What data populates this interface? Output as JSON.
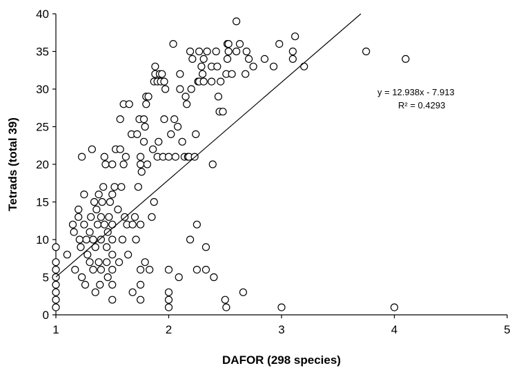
{
  "chart_data": {
    "type": "scatter",
    "title": "",
    "xlabel": "DAFOR (298 species)",
    "ylabel": "Tetrads (total 39)",
    "xlim": [
      1,
      5
    ],
    "ylim": [
      0,
      40
    ],
    "xticks": [
      "1",
      "2",
      "3",
      "4",
      "5"
    ],
    "yticks": [
      "0",
      "5",
      "10",
      "15",
      "20",
      "25",
      "30",
      "35",
      "40"
    ],
    "grid": false,
    "legend": "none",
    "colors": {
      "marker_stroke": "#000000",
      "marker_fill": "#ffffff",
      "trendline": "#000000"
    },
    "trendline": {
      "slope": 12.938,
      "intercept": -7.913
    },
    "annotations": {
      "equation": "y = 12.938x - 7.913",
      "r2": "R² = 0.4293"
    },
    "points": [
      [
        1.0,
        9
      ],
      [
        1.0,
        7
      ],
      [
        1.0,
        6
      ],
      [
        1.0,
        5
      ],
      [
        1.0,
        4
      ],
      [
        1.0,
        3
      ],
      [
        1.0,
        2
      ],
      [
        1.0,
        1
      ],
      [
        1.1,
        8
      ],
      [
        1.15,
        12
      ],
      [
        1.16,
        11
      ],
      [
        1.17,
        6
      ],
      [
        1.2,
        14
      ],
      [
        1.2,
        13
      ],
      [
        1.21,
        10
      ],
      [
        1.22,
        9
      ],
      [
        1.23,
        5
      ],
      [
        1.23,
        21
      ],
      [
        1.25,
        16
      ],
      [
        1.25,
        12
      ],
      [
        1.26,
        4
      ],
      [
        1.27,
        10
      ],
      [
        1.28,
        8
      ],
      [
        1.3,
        11
      ],
      [
        1.3,
        7
      ],
      [
        1.31,
        13
      ],
      [
        1.32,
        22
      ],
      [
        1.33,
        10
      ],
      [
        1.33,
        6
      ],
      [
        1.34,
        15
      ],
      [
        1.35,
        3
      ],
      [
        1.35,
        9
      ],
      [
        1.36,
        14
      ],
      [
        1.37,
        12
      ],
      [
        1.38,
        7
      ],
      [
        1.38,
        16
      ],
      [
        1.39,
        4
      ],
      [
        1.4,
        13
      ],
      [
        1.4,
        10
      ],
      [
        1.4,
        6
      ],
      [
        1.41,
        15
      ],
      [
        1.42,
        17
      ],
      [
        1.43,
        21
      ],
      [
        1.43,
        12
      ],
      [
        1.44,
        20
      ],
      [
        1.45,
        7
      ],
      [
        1.45,
        9
      ],
      [
        1.46,
        5
      ],
      [
        1.46,
        11
      ],
      [
        1.47,
        13
      ],
      [
        1.48,
        15
      ],
      [
        1.5,
        20
      ],
      [
        1.5,
        16
      ],
      [
        1.5,
        12
      ],
      [
        1.5,
        10
      ],
      [
        1.5,
        8
      ],
      [
        1.5,
        6
      ],
      [
        1.5,
        4
      ],
      [
        1.5,
        2
      ],
      [
        1.52,
        17
      ],
      [
        1.53,
        22
      ],
      [
        1.55,
        14
      ],
      [
        1.56,
        7
      ],
      [
        1.57,
        26
      ],
      [
        1.57,
        22
      ],
      [
        1.58,
        17
      ],
      [
        1.59,
        10
      ],
      [
        1.6,
        28
      ],
      [
        1.6,
        20
      ],
      [
        1.61,
        13
      ],
      [
        1.62,
        21
      ],
      [
        1.63,
        12
      ],
      [
        1.64,
        8
      ],
      [
        1.65,
        28
      ],
      [
        1.67,
        24
      ],
      [
        1.68,
        12
      ],
      [
        1.68,
        3
      ],
      [
        1.7,
        13
      ],
      [
        1.71,
        10
      ],
      [
        1.72,
        24
      ],
      [
        1.73,
        17
      ],
      [
        1.74,
        26
      ],
      [
        1.75,
        21
      ],
      [
        1.75,
        20
      ],
      [
        1.75,
        12
      ],
      [
        1.75,
        6
      ],
      [
        1.75,
        4
      ],
      [
        1.75,
        2
      ],
      [
        1.76,
        19
      ],
      [
        1.78,
        26
      ],
      [
        1.78,
        23
      ],
      [
        1.79,
        25
      ],
      [
        1.79,
        7
      ],
      [
        1.8,
        28
      ],
      [
        1.8,
        29
      ],
      [
        1.81,
        20
      ],
      [
        1.82,
        29
      ],
      [
        1.83,
        6
      ],
      [
        1.85,
        13
      ],
      [
        1.86,
        22
      ],
      [
        1.87,
        15
      ],
      [
        1.87,
        31
      ],
      [
        1.88,
        33
      ],
      [
        1.88,
        32
      ],
      [
        1.9,
        21
      ],
      [
        1.9,
        31
      ],
      [
        1.91,
        23
      ],
      [
        1.92,
        32
      ],
      [
        1.93,
        31
      ],
      [
        1.94,
        32
      ],
      [
        1.95,
        21
      ],
      [
        1.96,
        26
      ],
      [
        1.96,
        31
      ],
      [
        1.97,
        30
      ],
      [
        2.0,
        21
      ],
      [
        2.0,
        6
      ],
      [
        2.0,
        3
      ],
      [
        2.0,
        2
      ],
      [
        2.0,
        1
      ],
      [
        2.02,
        24
      ],
      [
        2.04,
        36
      ],
      [
        2.05,
        26
      ],
      [
        2.06,
        21
      ],
      [
        2.08,
        25
      ],
      [
        2.09,
        5
      ],
      [
        2.1,
        30
      ],
      [
        2.1,
        32
      ],
      [
        2.12,
        23
      ],
      [
        2.14,
        21
      ],
      [
        2.15,
        29
      ],
      [
        2.16,
        28
      ],
      [
        2.17,
        21
      ],
      [
        2.18,
        21
      ],
      [
        2.19,
        35
      ],
      [
        2.19,
        10
      ],
      [
        2.2,
        30
      ],
      [
        2.21,
        34
      ],
      [
        2.23,
        21
      ],
      [
        2.24,
        24
      ],
      [
        2.25,
        12
      ],
      [
        2.25,
        6
      ],
      [
        2.26,
        31
      ],
      [
        2.27,
        35
      ],
      [
        2.27,
        31
      ],
      [
        2.29,
        33
      ],
      [
        2.3,
        32
      ],
      [
        2.31,
        34
      ],
      [
        2.31,
        31
      ],
      [
        2.33,
        6
      ],
      [
        2.33,
        9
      ],
      [
        2.34,
        35
      ],
      [
        2.38,
        31
      ],
      [
        2.38,
        33
      ],
      [
        2.39,
        20
      ],
      [
        2.4,
        5
      ],
      [
        2.42,
        35
      ],
      [
        2.43,
        33
      ],
      [
        2.44,
        29
      ],
      [
        2.45,
        27
      ],
      [
        2.46,
        31
      ],
      [
        2.48,
        27
      ],
      [
        2.5,
        2
      ],
      [
        2.51,
        32
      ],
      [
        2.51,
        1
      ],
      [
        2.52,
        36
      ],
      [
        2.52,
        34
      ],
      [
        2.53,
        35
      ],
      [
        2.53,
        36
      ],
      [
        2.56,
        32
      ],
      [
        2.6,
        35
      ],
      [
        2.63,
        36
      ],
      [
        2.66,
        3
      ],
      [
        2.68,
        32
      ],
      [
        2.69,
        35
      ],
      [
        2.71,
        34
      ],
      [
        2.75,
        33
      ],
      [
        2.85,
        34
      ],
      [
        2.93,
        33
      ],
      [
        2.98,
        36
      ],
      [
        3.0,
        1
      ],
      [
        3.1,
        35
      ],
      [
        3.1,
        34
      ],
      [
        3.12,
        37
      ],
      [
        3.2,
        33
      ],
      [
        2.6,
        39
      ],
      [
        3.75,
        35
      ],
      [
        4.0,
        1
      ],
      [
        4.1,
        34
      ]
    ]
  }
}
